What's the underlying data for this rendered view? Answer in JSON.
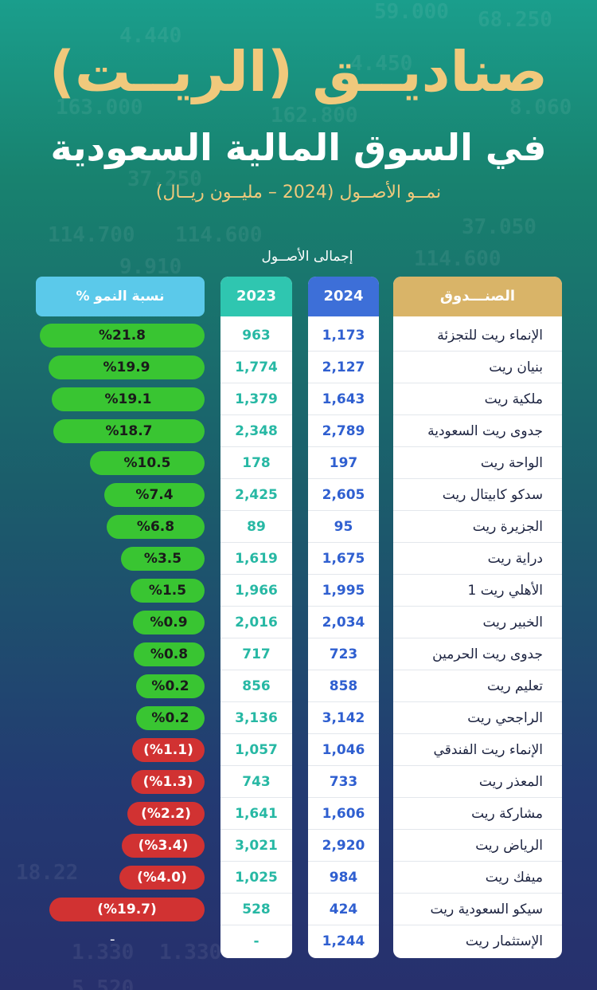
{
  "title": {
    "line1": "صناديــق (الريــت)",
    "line2": "في السوق المالية السعودية"
  },
  "subtitle": "نمــو الأصــول (2024 – مليــون ريــال)",
  "total_label": "إجمالى الأصــول",
  "headers": {
    "fund": "الصنـــدوق",
    "y2024": "2024",
    "y2023": "2023",
    "growth": "نسبة النمو %"
  },
  "colors": {
    "gold": "#f0c97c",
    "blue": "#3d6fd8",
    "teal": "#2fc6b0",
    "growth_pos": "#39c532",
    "growth_neg": "#d13232"
  },
  "rows": [
    {
      "fund": "الإنماء ريت للتجزئة",
      "y2024": "1,173",
      "y2023": "963",
      "growth": "%21.8",
      "growth_value": 21.8
    },
    {
      "fund": "بنيان ريت",
      "y2024": "2,127",
      "y2023": "1,774",
      "growth": "%19.9",
      "growth_value": 19.9
    },
    {
      "fund": "ملكية ريت",
      "y2024": "1,643",
      "y2023": "1,379",
      "growth": "%19.1",
      "growth_value": 19.1
    },
    {
      "fund": "جدوى ريت السعودية",
      "y2024": "2,789",
      "y2023": "2,348",
      "growth": "%18.7",
      "growth_value": 18.7
    },
    {
      "fund": "الواحة ريت",
      "y2024": "197",
      "y2023": "178",
      "growth": "%10.5",
      "growth_value": 10.5
    },
    {
      "fund": "سدكو كابيتال ريت",
      "y2024": "2,605",
      "y2023": "2,425",
      "growth": "%7.4",
      "growth_value": 7.4
    },
    {
      "fund": "الجزيرة ريت",
      "y2024": "95",
      "y2023": "89",
      "growth": "%6.8",
      "growth_value": 6.8
    },
    {
      "fund": "دراية ريت",
      "y2024": "1,675",
      "y2023": "1,619",
      "growth": "%3.5",
      "growth_value": 3.5
    },
    {
      "fund": "الأهلي ريت 1",
      "y2024": "1,995",
      "y2023": "1,966",
      "growth": "%1.5",
      "growth_value": 1.5
    },
    {
      "fund": "الخبير ريت",
      "y2024": "2,034",
      "y2023": "2,016",
      "growth": "%0.9",
      "growth_value": 0.9
    },
    {
      "fund": "جدوى ريت الحرمين",
      "y2024": "723",
      "y2023": "717",
      "growth": "%0.8",
      "growth_value": 0.8
    },
    {
      "fund": "تعليم ريت",
      "y2024": "858",
      "y2023": "856",
      "growth": "%0.2",
      "growth_value": 0.2
    },
    {
      "fund": "الراجحي ريت",
      "y2024": "3,142",
      "y2023": "3,136",
      "growth": "%0.2",
      "growth_value": 0.2
    },
    {
      "fund": "الإنماء ريت الفندقي",
      "y2024": "1,046",
      "y2023": "1,057",
      "growth": "(%1.1)",
      "growth_value": -1.1
    },
    {
      "fund": "المعذر ريت",
      "y2024": "733",
      "y2023": "743",
      "growth": "(%1.3)",
      "growth_value": -1.3
    },
    {
      "fund": "مشاركة ريت",
      "y2024": "1,606",
      "y2023": "1,641",
      "growth": "(%2.2)",
      "growth_value": -2.2
    },
    {
      "fund": "الرياض ريت",
      "y2024": "2,920",
      "y2023": "3,021",
      "growth": "(%3.4)",
      "growth_value": -3.4
    },
    {
      "fund": "ميفك ريت",
      "y2024": "984",
      "y2023": "1,025",
      "growth": "(%4.0)",
      "growth_value": -4.0
    },
    {
      "fund": "سيكو السعودية ريت",
      "y2024": "424",
      "y2023": "528",
      "growth": "(%19.7)",
      "growth_value": -19.7
    },
    {
      "fund": "الإستثمار ريت",
      "y2024": "1,244",
      "y2023": "-",
      "growth": "-",
      "growth_value": null
    }
  ],
  "background_numbers": [
    "4.440",
    "59.000",
    "68.250",
    "163.000",
    "4.450",
    "37.250",
    "162.800",
    "8.060",
    "114.700",
    "114.600",
    "37.050",
    "9.910",
    "114.600",
    "18.22",
    "1.330",
    "1.330",
    "5.520"
  ]
}
